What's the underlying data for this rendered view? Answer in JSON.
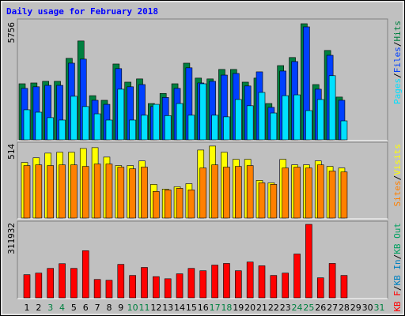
{
  "title": "Daily usage for February 2018",
  "chart_data": [
    {
      "type": "bar",
      "ylim": [
        0,
        5756
      ],
      "yticks": [
        5756
      ],
      "legend_separator": "/",
      "series": [
        {
          "name": "Hits",
          "color": "#008040",
          "values": [
            2780,
            2820,
            2900,
            2900,
            4040,
            4900,
            2190,
            1960,
            3760,
            2860,
            3020,
            1800,
            2300,
            2780,
            3800,
            3060,
            3020,
            3490,
            3490,
            2860,
            3060,
            1800,
            3680,
            4080,
            5756,
            2740,
            4430,
            2120,
            null,
            null,
            null
          ]
        },
        {
          "name": "Files",
          "color": "#0040ff",
          "values": [
            2550,
            2630,
            2700,
            2700,
            3800,
            4000,
            1960,
            1760,
            3530,
            2630,
            2740,
            1650,
            2100,
            2550,
            3570,
            2820,
            2900,
            3210,
            3290,
            2670,
            3370,
            1610,
            3410,
            3880,
            5600,
            2510,
            4190,
            1960,
            null,
            null,
            null
          ]
        },
        {
          "name": "Pages",
          "color": "#00e0ff",
          "values": [
            1490,
            1370,
            1100,
            980,
            2160,
            1650,
            1290,
            980,
            2510,
            980,
            1220,
            1760,
            1200,
            1800,
            1220,
            2780,
            1220,
            1140,
            2000,
            1690,
            2350,
            1330,
            2190,
            2230,
            1450,
            2000,
            3180,
            940,
            null,
            null,
            null
          ]
        }
      ]
    },
    {
      "type": "bar",
      "ylim": [
        0,
        514
      ],
      "yticks": [
        514
      ],
      "legend_separator": "/",
      "series": [
        {
          "name": "Visits",
          "color": "#ffff00",
          "values": [
            393,
            426,
            459,
            465,
            465,
            492,
            498,
            431,
            371,
            371,
            404,
            238,
            205,
            221,
            243,
            481,
            509,
            465,
            415,
            415,
            266,
            249,
            415,
            376,
            376,
            404,
            365,
            354,
            null,
            null,
            null
          ]
        },
        {
          "name": "Sites",
          "color": "#ff8000",
          "values": [
            371,
            376,
            371,
            376,
            376,
            365,
            382,
            382,
            360,
            348,
            360,
            188,
            199,
            210,
            199,
            354,
            376,
            360,
            365,
            371,
            249,
            238,
            354,
            360,
            354,
            376,
            332,
            326,
            null,
            null,
            null
          ]
        }
      ]
    },
    {
      "type": "bar",
      "ylim": [
        0,
        311932
      ],
      "yticks": [
        311932
      ],
      "legend_separator": "/",
      "categories": [
        "1",
        "2",
        "3",
        "4",
        "5",
        "6",
        "7",
        "8",
        "9",
        "10",
        "11",
        "12",
        "13",
        "14",
        "15",
        "16",
        "17",
        "18",
        "19",
        "20",
        "21",
        "22",
        "23",
        "24",
        "25",
        "26",
        "27",
        "28",
        "29",
        "30",
        "31"
      ],
      "category_colors": [
        "#000000",
        "#000000",
        "#008040",
        "#008040",
        "#000000",
        "#000000",
        "#000000",
        "#000000",
        "#000000",
        "#008040",
        "#008040",
        "#000000",
        "#000000",
        "#000000",
        "#000000",
        "#000000",
        "#008040",
        "#008040",
        "#000000",
        "#000000",
        "#000000",
        "#000000",
        "#000000",
        "#008040",
        "#008040",
        "#000000",
        "#000000",
        "#000000",
        "#000000",
        "#000000",
        "#008040"
      ],
      "series": [
        {
          "name": "KB Out",
          "color": "#00a060",
          "values": [
            null,
            null,
            null,
            null,
            null,
            null,
            null,
            null,
            null,
            null,
            null,
            null,
            null,
            null,
            null,
            null,
            null,
            null,
            null,
            null,
            null,
            null,
            null,
            null,
            null,
            null,
            null,
            null,
            null,
            null,
            null
          ]
        },
        {
          "name": "KB In",
          "color": "#0080c0",
          "values": [
            null,
            null,
            null,
            null,
            null,
            null,
            null,
            null,
            null,
            null,
            null,
            null,
            null,
            null,
            null,
            null,
            null,
            null,
            null,
            null,
            null,
            null,
            null,
            null,
            null,
            null,
            null,
            null,
            null,
            null,
            null
          ]
        },
        {
          "name": "KB F",
          "color": "#ff0000",
          "values": [
            98300,
            105000,
            125000,
            145000,
            125000,
            200000,
            78000,
            74600,
            142000,
            95000,
            129000,
            90000,
            81000,
            102000,
            125000,
            115000,
            139000,
            146000,
            115000,
            152000,
            136000,
            95000,
            105000,
            186000,
            311932,
            85000,
            146000,
            95000,
            null,
            null,
            null
          ]
        }
      ]
    }
  ]
}
